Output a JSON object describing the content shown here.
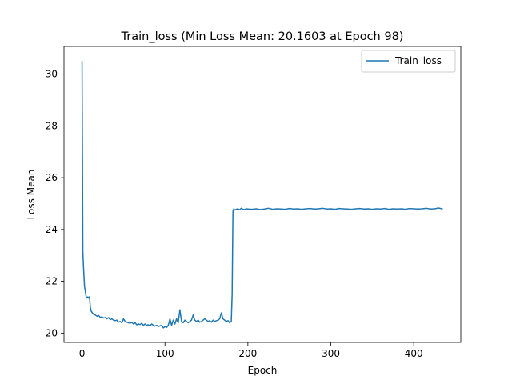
{
  "chart_data": {
    "type": "line",
    "title": "Train_loss (Min Loss Mean: 20.1603 at Epoch 98)",
    "xlabel": "Epoch",
    "ylabel": "Loss Mean",
    "xlim": [
      -21.75,
      456.75
    ],
    "ylim": [
      19.64,
      31.07
    ],
    "xticks": [
      0,
      100,
      200,
      300,
      400
    ],
    "yticks": [
      20,
      22,
      24,
      26,
      28,
      30
    ],
    "grid": false,
    "legend_position": "top-right",
    "series": [
      {
        "name": "Train_loss",
        "color": "#1f77b4",
        "x": [
          0,
          1,
          2,
          3,
          4,
          5,
          6,
          7,
          8,
          9,
          10,
          11,
          12,
          14,
          16,
          18,
          20,
          22,
          24,
          26,
          28,
          30,
          32,
          34,
          36,
          38,
          40,
          42,
          44,
          46,
          48,
          50,
          52,
          54,
          56,
          58,
          60,
          62,
          64,
          66,
          68,
          70,
          72,
          74,
          76,
          78,
          80,
          82,
          84,
          86,
          88,
          90,
          92,
          94,
          96,
          98,
          100,
          102,
          104,
          106,
          108,
          110,
          112,
          114,
          116,
          118,
          120,
          122,
          124,
          126,
          128,
          130,
          132,
          134,
          136,
          138,
          140,
          142,
          144,
          146,
          148,
          150,
          152,
          154,
          156,
          158,
          160,
          162,
          164,
          166,
          168,
          170,
          172,
          174,
          176,
          178,
          180,
          181,
          182,
          183,
          184,
          186,
          188,
          190,
          192,
          194,
          196,
          198,
          200,
          205,
          210,
          215,
          220,
          225,
          230,
          235,
          240,
          245,
          250,
          255,
          260,
          265,
          270,
          275,
          280,
          285,
          290,
          295,
          300,
          305,
          310,
          315,
          320,
          325,
          330,
          335,
          340,
          345,
          350,
          355,
          360,
          365,
          370,
          375,
          380,
          385,
          390,
          395,
          400,
          405,
          410,
          415,
          420,
          425,
          430,
          435
        ],
        "y": [
          30.5,
          23.1,
          22.4,
          21.8,
          21.6,
          21.4,
          21.35,
          21.4,
          21.35,
          21.4,
          21.0,
          20.85,
          20.8,
          20.72,
          20.7,
          20.65,
          20.68,
          20.6,
          20.63,
          20.58,
          20.6,
          20.55,
          20.6,
          20.52,
          20.55,
          20.5,
          20.48,
          20.5,
          20.42,
          20.45,
          20.4,
          20.55,
          20.45,
          20.42,
          20.4,
          20.38,
          20.42,
          20.35,
          20.4,
          20.32,
          20.35,
          20.33,
          20.38,
          20.3,
          20.35,
          20.3,
          20.32,
          20.28,
          20.35,
          20.3,
          20.27,
          20.3,
          20.25,
          20.28,
          20.3,
          20.2,
          20.25,
          20.22,
          20.3,
          20.55,
          20.3,
          20.5,
          20.35,
          20.55,
          20.4,
          20.9,
          20.45,
          20.4,
          20.5,
          20.45,
          20.4,
          20.45,
          20.5,
          20.7,
          20.5,
          20.45,
          20.5,
          20.42,
          20.45,
          20.5,
          20.55,
          20.5,
          20.45,
          20.48,
          20.42,
          20.5,
          20.45,
          20.48,
          20.5,
          20.55,
          20.78,
          20.55,
          20.5,
          20.45,
          20.48,
          20.4,
          20.45,
          21.5,
          24.7,
          24.8,
          24.75,
          24.78,
          24.8,
          24.76,
          24.82,
          24.78,
          24.77,
          24.8,
          24.79,
          24.78,
          24.8,
          24.77,
          24.79,
          24.82,
          24.78,
          24.8,
          24.79,
          24.78,
          24.81,
          24.79,
          24.8,
          24.78,
          24.8,
          24.81,
          24.79,
          24.8,
          24.82,
          24.79,
          24.8,
          24.78,
          24.81,
          24.8,
          24.79,
          24.78,
          24.8,
          24.81,
          24.79,
          24.8,
          24.78,
          24.8,
          24.79,
          24.81,
          24.78,
          24.8,
          24.79,
          24.8,
          24.78,
          24.81,
          24.8,
          24.79,
          24.8,
          24.82,
          24.79,
          24.8,
          24.83,
          24.79
        ]
      }
    ]
  }
}
